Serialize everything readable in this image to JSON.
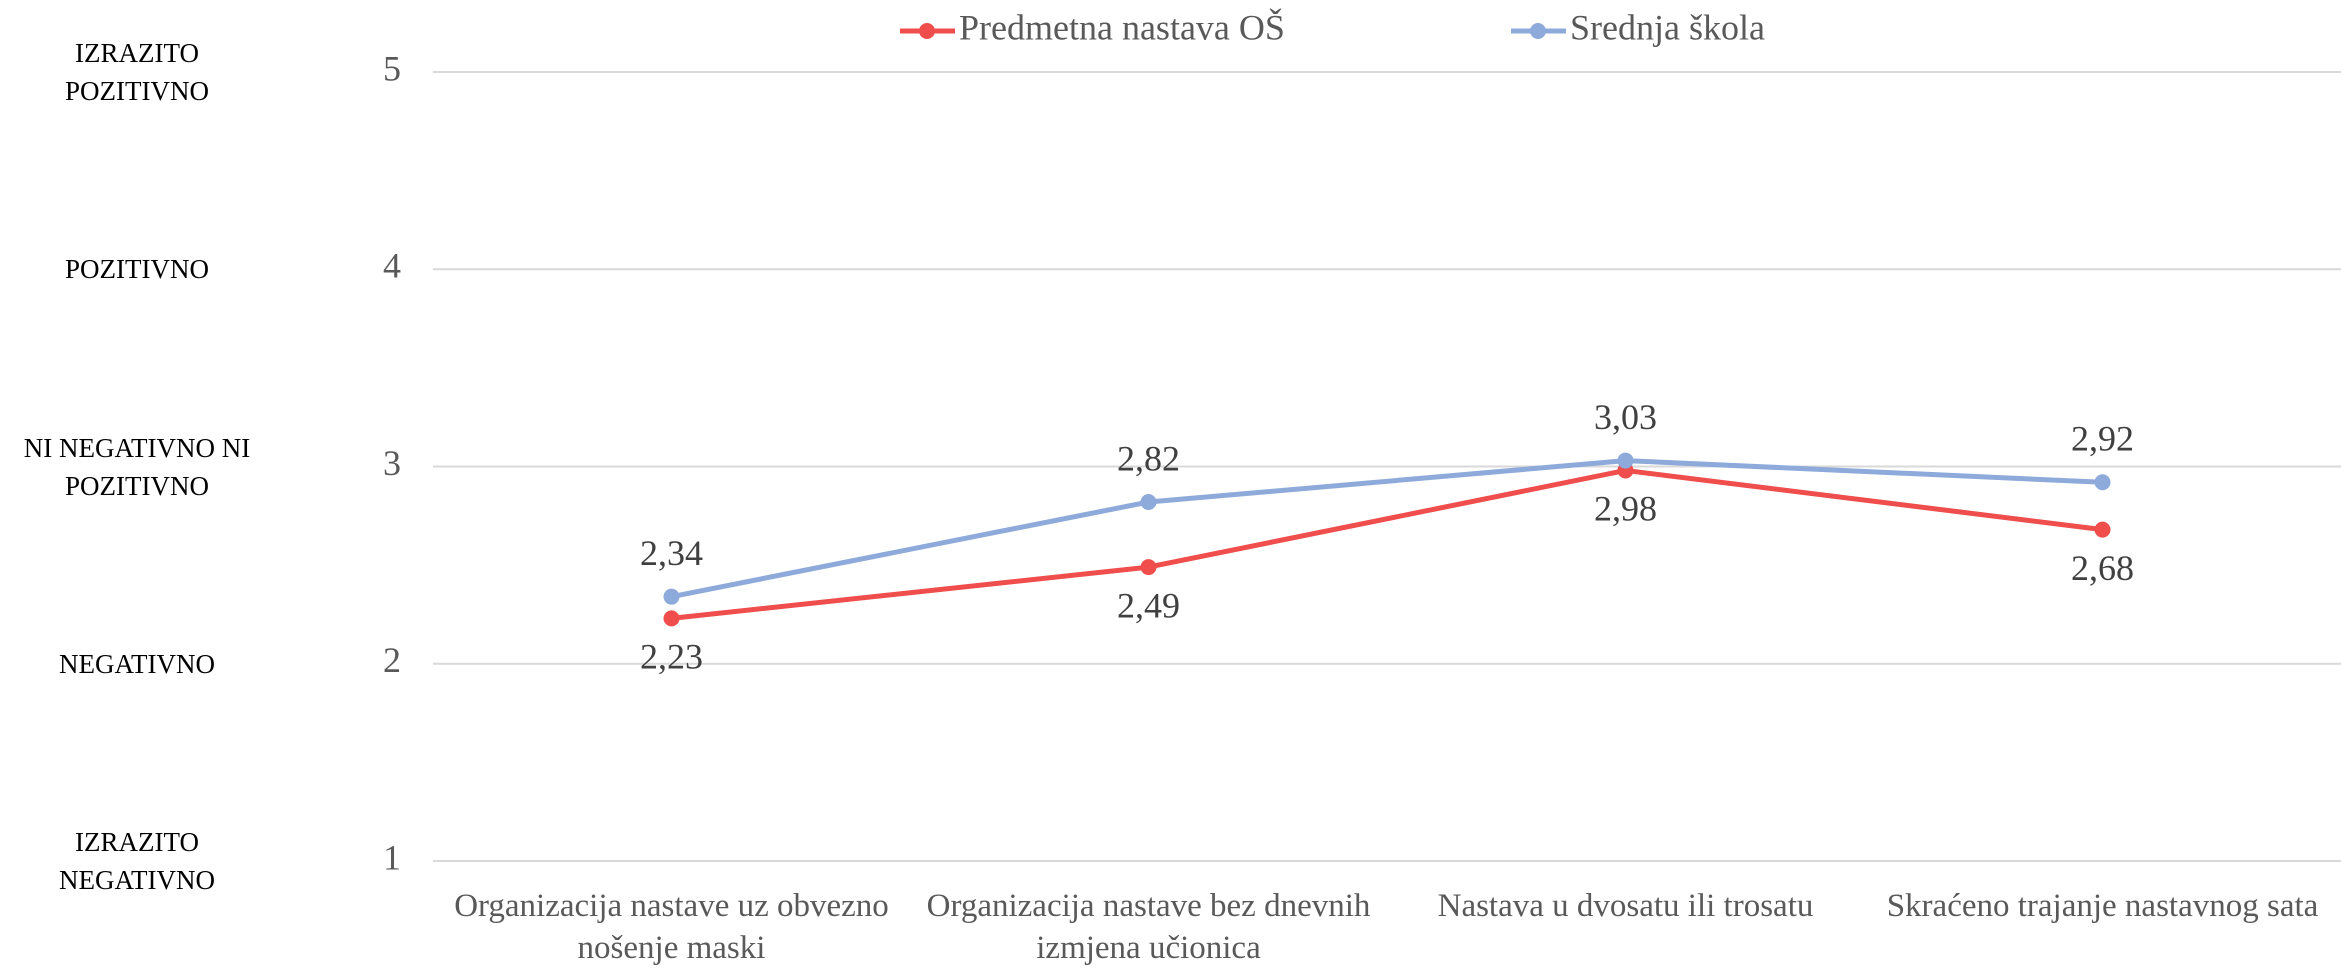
{
  "chart_data": {
    "type": "line",
    "categories": [
      "Organizacija nastave uz obvezno nošenje maski",
      "Organizacija nastave bez dnevnih izmjena učionica",
      "Nastava u dvosatu ili trosatu",
      "Skraćeno trajanje nastavnog sata"
    ],
    "series": [
      {
        "name": "Predmetna nastava OŠ",
        "color": "#f04d4d",
        "values": [
          2.23,
          2.49,
          2.98,
          2.68
        ],
        "value_labels": [
          "2,23",
          "2,49",
          "2,98",
          "2,68"
        ]
      },
      {
        "name": "Srednja škola",
        "color": "#8eaadb",
        "values": [
          2.34,
          2.82,
          3.03,
          2.92
        ],
        "value_labels": [
          "2,34",
          "2,82",
          "3,03",
          "2,92"
        ]
      }
    ],
    "ylim": [
      1,
      5
    ],
    "yticks": [
      1,
      2,
      3,
      4,
      5
    ],
    "y_level_labels": [
      "IZRAZITO NEGATIVNO",
      "NEGATIVNO",
      "NI NEGATIVNO NI POZITIVNO",
      "POZITIVNO",
      "IZRAZITO POZITIVNO"
    ],
    "grid": true,
    "legend": "top"
  }
}
